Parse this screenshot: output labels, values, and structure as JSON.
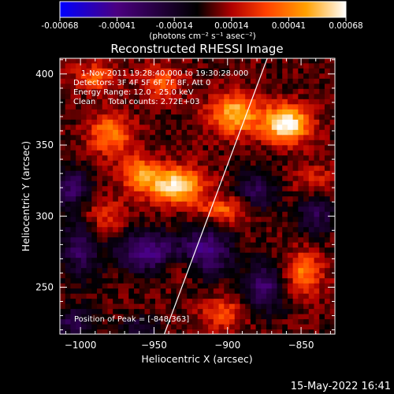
{
  "colorbar": {
    "ticks": [
      "-0.00068",
      "-0.00041",
      "-0.00014",
      "0.00014",
      "0.00041",
      "0.00068"
    ],
    "unit_label": "(photons cm⁻² s⁻¹ asec⁻²)",
    "colors": [
      "#0000ff",
      "#4b0080",
      "#000000",
      "#b00000",
      "#ff4000",
      "#ffa000",
      "#ffffff"
    ]
  },
  "footer": {
    "date": "15-May-2022 16:41"
  },
  "chart_data": {
    "type": "heatmap",
    "title": "Reconstructed RHESSI Image",
    "xlabel": "Heliocentric X (arcsec)",
    "ylabel": "Heliocentric Y (arcsec)",
    "xlim": [
      -1014,
      -827
    ],
    "ylim": [
      217,
      411
    ],
    "xticks": [
      -1000,
      -950,
      -900,
      -850
    ],
    "yticks": [
      250,
      300,
      350,
      400
    ],
    "xtick_labels": [
      "−1000",
      "−950",
      "−900",
      "−850"
    ],
    "ytick_labels": [
      "250",
      "300",
      "350",
      "400"
    ],
    "annotations": [
      "1-Nov-2011 19:28:40.000 to 19:30:28.000",
      "Detectors: 3F 4F 5F 6F 7F 8F, Att 0",
      "Energy Range: 12.0 - 25.0 keV",
      "Clean     Total counts: 2.72E+03"
    ],
    "peak_label": "Position of Peak = [-848,363]",
    "peak": [
      -848,
      363
    ],
    "limb_line": [
      [
        -943,
        217
      ],
      [
        -873,
        411
      ]
    ],
    "color_range": [
      -0.00068,
      0.00068
    ],
    "grid": false,
    "bright_regions": [
      {
        "x": -935,
        "y": 322,
        "sx": 13,
        "sy": 9,
        "peak": 0.0006
      },
      {
        "x": -860,
        "y": 365,
        "sx": 11,
        "sy": 9,
        "peak": 0.00068
      },
      {
        "x": -895,
        "y": 372,
        "sx": 12,
        "sy": 10,
        "peak": 0.0005
      },
      {
        "x": -980,
        "y": 358,
        "sx": 10,
        "sy": 10,
        "peak": 0.0004
      },
      {
        "x": -960,
        "y": 330,
        "sx": 9,
        "sy": 9,
        "peak": 0.00038
      },
      {
        "x": -902,
        "y": 305,
        "sx": 12,
        "sy": 6,
        "peak": 0.00032
      },
      {
        "x": -848,
        "y": 260,
        "sx": 9,
        "sy": 11,
        "peak": 0.00036
      },
      {
        "x": -990,
        "y": 398,
        "sx": 10,
        "sy": 7,
        "peak": 0.0003
      },
      {
        "x": -945,
        "y": 395,
        "sx": 10,
        "sy": 8,
        "peak": 0.0003
      },
      {
        "x": -985,
        "y": 300,
        "sx": 10,
        "sy": 10,
        "peak": 0.0002
      },
      {
        "x": -903,
        "y": 232,
        "sx": 10,
        "sy": 8,
        "peak": 0.00028
      },
      {
        "x": -930,
        "y": 265,
        "sx": 10,
        "sy": 7,
        "peak": 0.00018
      },
      {
        "x": -840,
        "y": 325,
        "sx": 10,
        "sy": 8,
        "peak": 0.00018
      }
    ],
    "dark_regions": [
      {
        "x": -955,
        "y": 275,
        "sx": 14,
        "sy": 10,
        "peak": -0.00045
      },
      {
        "x": -915,
        "y": 275,
        "sx": 12,
        "sy": 12,
        "peak": -0.00045
      },
      {
        "x": -1000,
        "y": 278,
        "sx": 9,
        "sy": 14,
        "peak": -0.00035
      },
      {
        "x": -1005,
        "y": 320,
        "sx": 8,
        "sy": 10,
        "peak": -0.00035
      },
      {
        "x": -880,
        "y": 318,
        "sx": 10,
        "sy": 10,
        "peak": -0.0003
      },
      {
        "x": -840,
        "y": 302,
        "sx": 9,
        "sy": 10,
        "peak": -0.0003
      },
      {
        "x": -875,
        "y": 250,
        "sx": 10,
        "sy": 12,
        "peak": -0.00038
      },
      {
        "x": -1005,
        "y": 225,
        "sx": 9,
        "sy": 8,
        "peak": -0.00028
      },
      {
        "x": -960,
        "y": 222,
        "sx": 10,
        "sy": 6,
        "peak": -0.00022
      }
    ]
  }
}
